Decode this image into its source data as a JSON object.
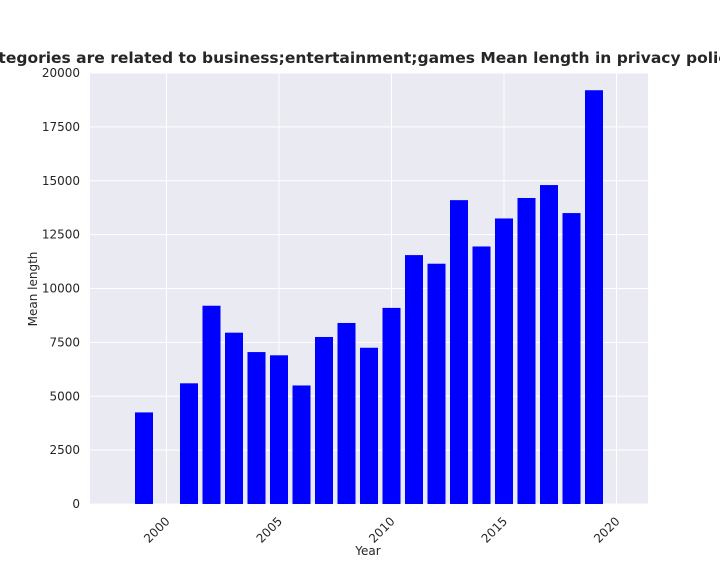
{
  "chart_data": {
    "type": "bar",
    "title": "hen categories are related to business;entertainment;games Mean length in privacy policies by",
    "xlabel": "Year",
    "ylabel": "Mean length",
    "x": [
      1999,
      2001,
      2002,
      2003,
      2004,
      2005,
      2006,
      2007,
      2008,
      2009,
      2010,
      2011,
      2012,
      2013,
      2014,
      2015,
      2016,
      2017,
      2018,
      2019
    ],
    "values": [
      4250,
      5600,
      9200,
      7950,
      7050,
      6900,
      5500,
      7750,
      8400,
      7250,
      9100,
      11550,
      11150,
      14100,
      11950,
      13250,
      14200,
      14800,
      13500,
      19200
    ],
    "xlim": [
      1996.6,
      2021.4
    ],
    "ylim": [
      0,
      20000
    ],
    "xticks": [
      "2000",
      "2005",
      "2010",
      "2015",
      "2020"
    ],
    "yticks": [
      "0",
      "2500",
      "5000",
      "7500",
      "10000",
      "12500",
      "15000",
      "17500",
      "20000"
    ],
    "bar_color": "#0000ff",
    "background_color": "#eaeaf2",
    "grid": true
  }
}
